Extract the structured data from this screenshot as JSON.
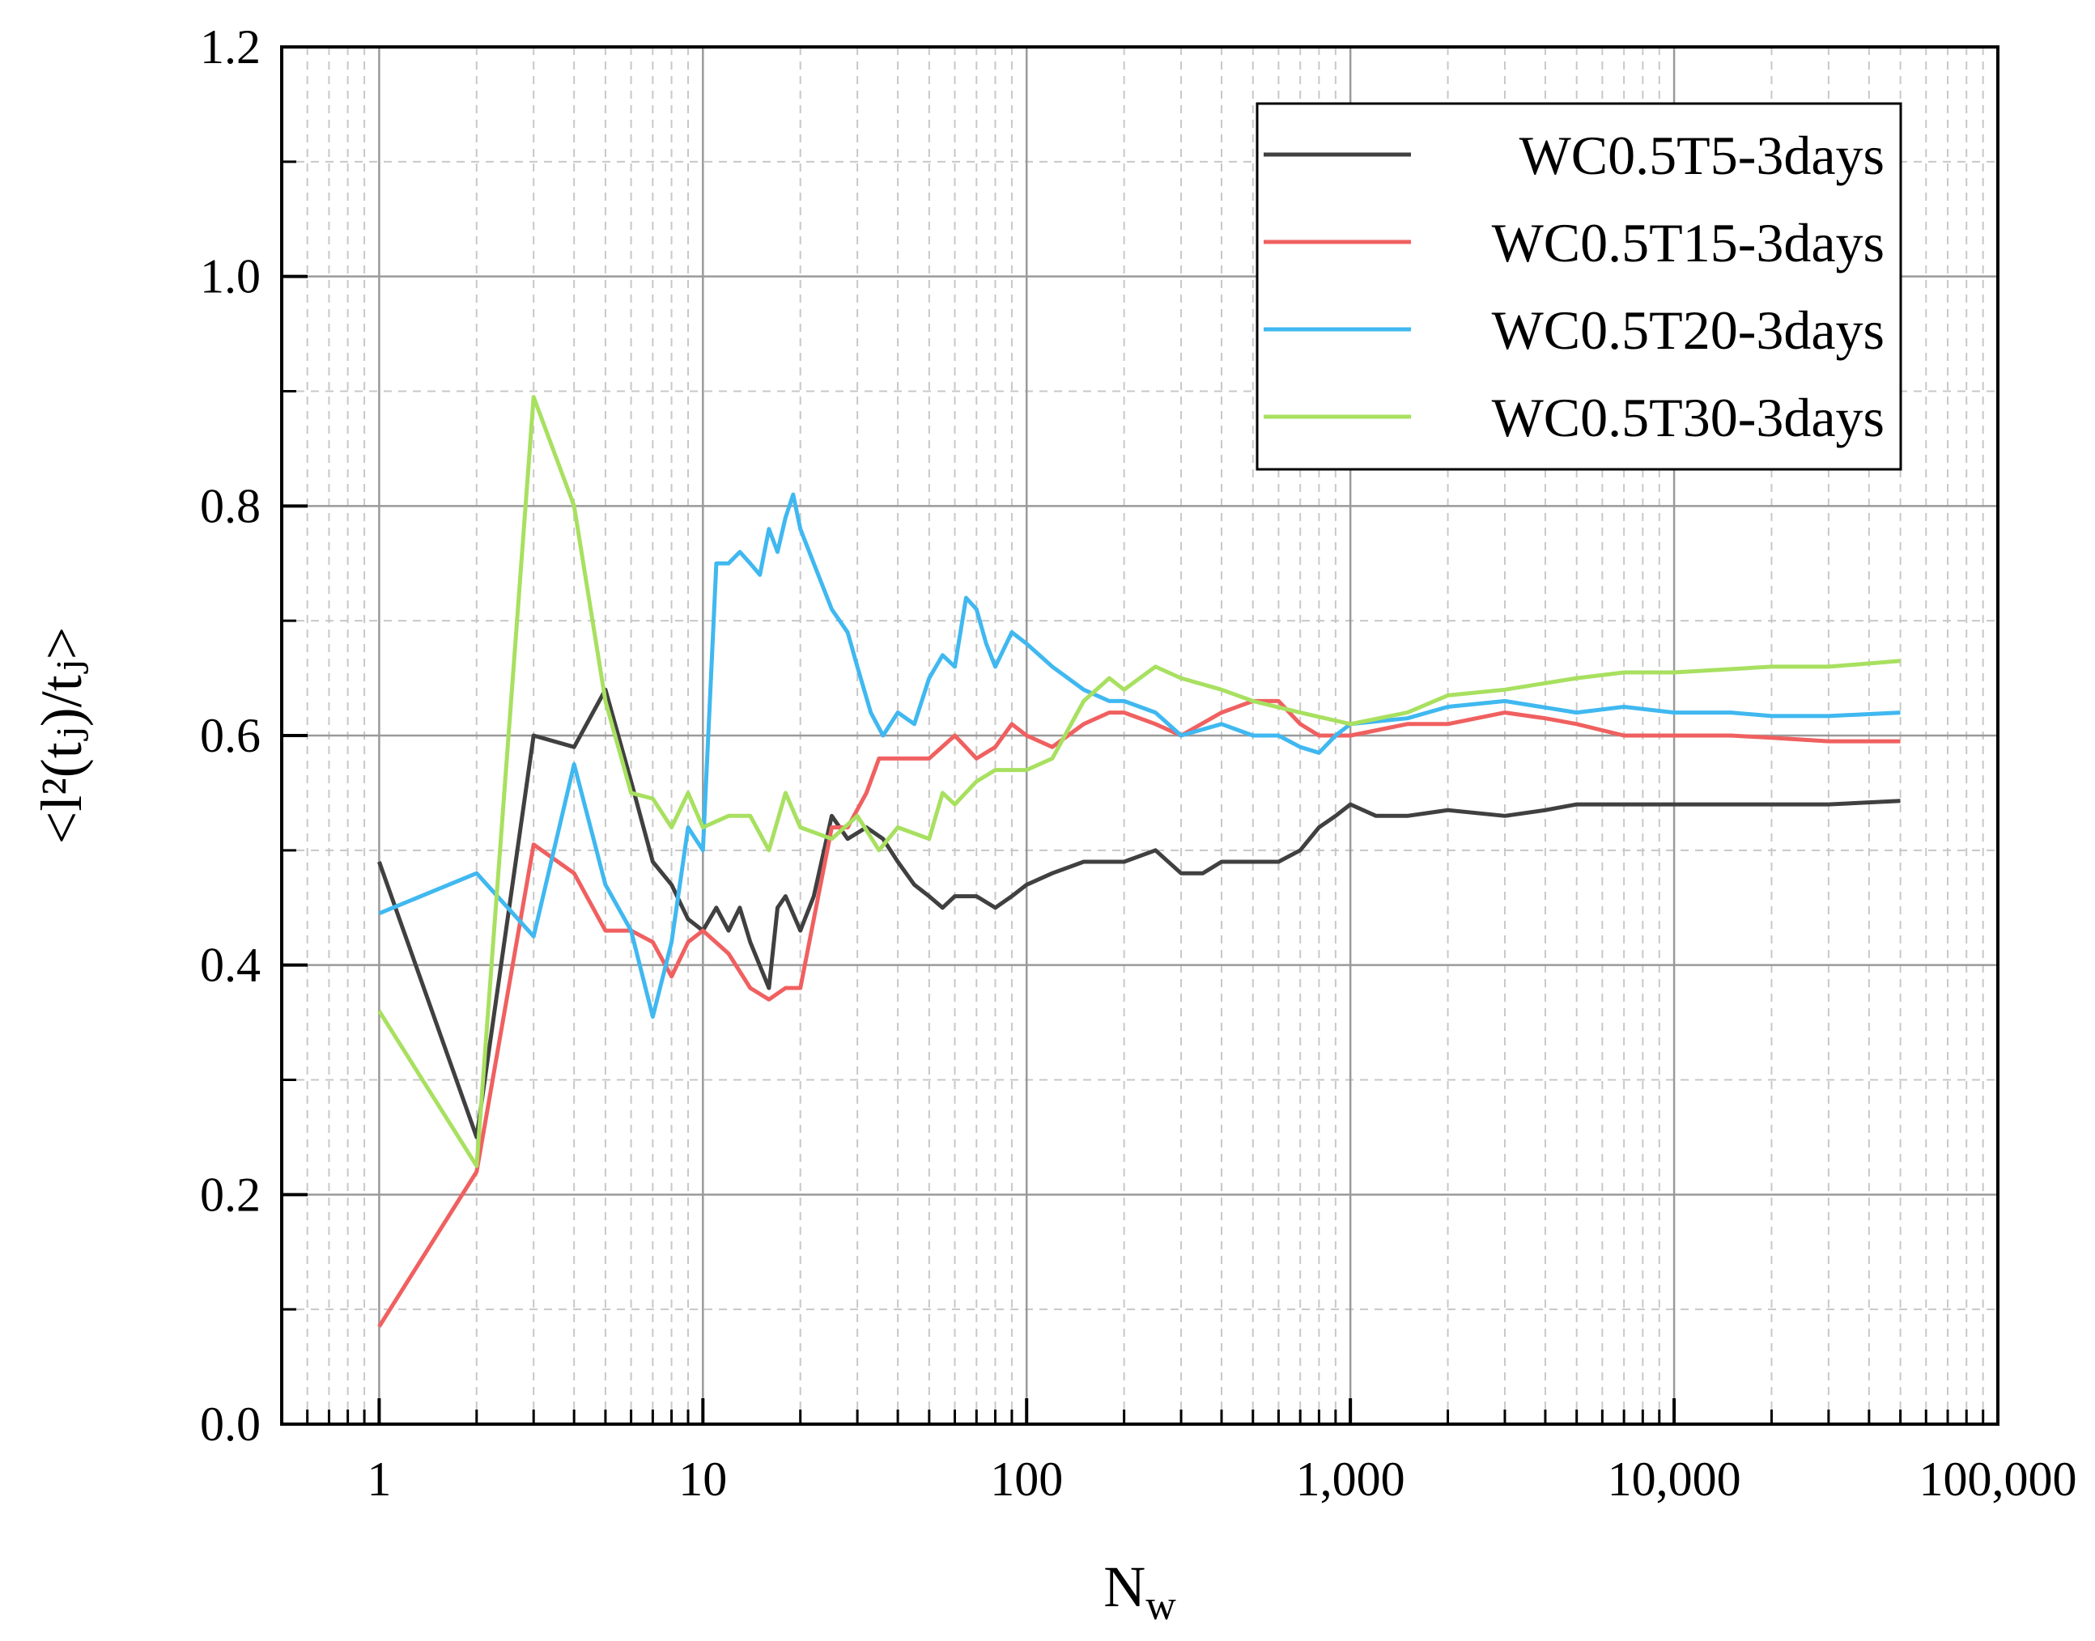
{
  "chart_data": {
    "type": "line",
    "xscale": "log",
    "xlabel": "N",
    "xlabel_sub": "w",
    "ylabel": "<l²(tⱼ)/tⱼ>",
    "xlim": [
      0.5,
      100000
    ],
    "ylim": [
      0.0,
      1.2
    ],
    "grid": true,
    "legend_position": "top-right",
    "x_ticks": [
      1,
      10,
      100,
      1000,
      10000,
      100000
    ],
    "x_tick_labels": [
      "1",
      "10",
      "100",
      "1,000",
      "10,000",
      "100,000"
    ],
    "y_ticks": [
      0.0,
      0.2,
      0.4,
      0.6,
      0.8,
      1.0,
      1.2
    ],
    "y_tick_labels": [
      "0.0",
      "0.2",
      "0.4",
      "0.6",
      "0.8",
      "1.0",
      "1.2"
    ],
    "series": [
      {
        "name": "WC0.5T5-3days",
        "color": "#404040",
        "points": [
          [
            1,
            0.49
          ],
          [
            2,
            0.25
          ],
          [
            3,
            0.6
          ],
          [
            4,
            0.59
          ],
          [
            5,
            0.64
          ],
          [
            6,
            0.56
          ],
          [
            7,
            0.49
          ],
          [
            8,
            0.47
          ],
          [
            9,
            0.44
          ],
          [
            10,
            0.43
          ],
          [
            11,
            0.45
          ],
          [
            12,
            0.43
          ],
          [
            13,
            0.45
          ],
          [
            14,
            0.42
          ],
          [
            16,
            0.38
          ],
          [
            17,
            0.45
          ],
          [
            18,
            0.46
          ],
          [
            20,
            0.43
          ],
          [
            22,
            0.46
          ],
          [
            25,
            0.53
          ],
          [
            28,
            0.51
          ],
          [
            32,
            0.52
          ],
          [
            36,
            0.51
          ],
          [
            40,
            0.49
          ],
          [
            45,
            0.47
          ],
          [
            50,
            0.46
          ],
          [
            55,
            0.45
          ],
          [
            60,
            0.46
          ],
          [
            70,
            0.46
          ],
          [
            80,
            0.45
          ],
          [
            90,
            0.46
          ],
          [
            100,
            0.47
          ],
          [
            120,
            0.48
          ],
          [
            150,
            0.49
          ],
          [
            180,
            0.49
          ],
          [
            200,
            0.49
          ],
          [
            250,
            0.5
          ],
          [
            300,
            0.48
          ],
          [
            350,
            0.48
          ],
          [
            400,
            0.49
          ],
          [
            500,
            0.49
          ],
          [
            600,
            0.49
          ],
          [
            700,
            0.5
          ],
          [
            800,
            0.52
          ],
          [
            900,
            0.53
          ],
          [
            1000,
            0.54
          ],
          [
            1200,
            0.53
          ],
          [
            1500,
            0.53
          ],
          [
            2000,
            0.535
          ],
          [
            3000,
            0.53
          ],
          [
            4000,
            0.535
          ],
          [
            5000,
            0.54
          ],
          [
            7000,
            0.54
          ],
          [
            10000,
            0.54
          ],
          [
            15000,
            0.54
          ],
          [
            20000,
            0.54
          ],
          [
            30000,
            0.54
          ],
          [
            50000,
            0.543
          ]
        ]
      },
      {
        "name": "WC0.5T15-3days",
        "color": "#f06060",
        "points": [
          [
            1,
            0.085
          ],
          [
            2,
            0.22
          ],
          [
            3,
            0.505
          ],
          [
            4,
            0.48
          ],
          [
            5,
            0.43
          ],
          [
            6,
            0.43
          ],
          [
            7,
            0.42
          ],
          [
            8,
            0.39
          ],
          [
            9,
            0.42
          ],
          [
            10,
            0.43
          ],
          [
            12,
            0.41
          ],
          [
            14,
            0.38
          ],
          [
            16,
            0.37
          ],
          [
            18,
            0.38
          ],
          [
            20,
            0.38
          ],
          [
            22,
            0.44
          ],
          [
            25,
            0.52
          ],
          [
            28,
            0.52
          ],
          [
            32,
            0.55
          ],
          [
            35,
            0.58
          ],
          [
            40,
            0.58
          ],
          [
            50,
            0.58
          ],
          [
            60,
            0.6
          ],
          [
            70,
            0.58
          ],
          [
            80,
            0.59
          ],
          [
            90,
            0.61
          ],
          [
            100,
            0.6
          ],
          [
            120,
            0.59
          ],
          [
            150,
            0.61
          ],
          [
            180,
            0.62
          ],
          [
            200,
            0.62
          ],
          [
            250,
            0.61
          ],
          [
            300,
            0.6
          ],
          [
            400,
            0.62
          ],
          [
            500,
            0.63
          ],
          [
            600,
            0.63
          ],
          [
            700,
            0.61
          ],
          [
            800,
            0.6
          ],
          [
            1000,
            0.6
          ],
          [
            1500,
            0.61
          ],
          [
            2000,
            0.61
          ],
          [
            3000,
            0.62
          ],
          [
            4000,
            0.615
          ],
          [
            5000,
            0.61
          ],
          [
            7000,
            0.6
          ],
          [
            10000,
            0.6
          ],
          [
            15000,
            0.6
          ],
          [
            20000,
            0.598
          ],
          [
            30000,
            0.595
          ],
          [
            50000,
            0.595
          ]
        ]
      },
      {
        "name": "WC0.5T20-3days",
        "color": "#40b8f0",
        "points": [
          [
            1,
            0.445
          ],
          [
            2,
            0.48
          ],
          [
            3,
            0.425
          ],
          [
            4,
            0.575
          ],
          [
            5,
            0.47
          ],
          [
            6,
            0.43
          ],
          [
            7,
            0.355
          ],
          [
            8,
            0.42
          ],
          [
            9,
            0.52
          ],
          [
            10,
            0.5
          ],
          [
            11,
            0.75
          ],
          [
            12,
            0.75
          ],
          [
            13,
            0.76
          ],
          [
            14,
            0.75
          ],
          [
            15,
            0.74
          ],
          [
            16,
            0.78
          ],
          [
            17,
            0.76
          ],
          [
            18,
            0.79
          ],
          [
            19,
            0.81
          ],
          [
            20,
            0.78
          ],
          [
            22,
            0.75
          ],
          [
            25,
            0.71
          ],
          [
            28,
            0.69
          ],
          [
            30,
            0.66
          ],
          [
            33,
            0.62
          ],
          [
            36,
            0.6
          ],
          [
            40,
            0.62
          ],
          [
            45,
            0.61
          ],
          [
            50,
            0.65
          ],
          [
            55,
            0.67
          ],
          [
            60,
            0.66
          ],
          [
            65,
            0.72
          ],
          [
            70,
            0.71
          ],
          [
            75,
            0.68
          ],
          [
            80,
            0.66
          ],
          [
            90,
            0.69
          ],
          [
            100,
            0.68
          ],
          [
            120,
            0.66
          ],
          [
            150,
            0.64
          ],
          [
            180,
            0.63
          ],
          [
            200,
            0.63
          ],
          [
            250,
            0.62
          ],
          [
            300,
            0.6
          ],
          [
            400,
            0.61
          ],
          [
            500,
            0.6
          ],
          [
            600,
            0.6
          ],
          [
            700,
            0.59
          ],
          [
            800,
            0.585
          ],
          [
            900,
            0.6
          ],
          [
            1000,
            0.61
          ],
          [
            1500,
            0.615
          ],
          [
            2000,
            0.625
          ],
          [
            3000,
            0.63
          ],
          [
            5000,
            0.62
          ],
          [
            7000,
            0.625
          ],
          [
            10000,
            0.62
          ],
          [
            15000,
            0.62
          ],
          [
            20000,
            0.617
          ],
          [
            30000,
            0.617
          ],
          [
            50000,
            0.62
          ]
        ]
      },
      {
        "name": "WC0.5T30-3days",
        "color": "#a8e060",
        "points": [
          [
            1,
            0.36
          ],
          [
            2,
            0.225
          ],
          [
            3,
            0.895
          ],
          [
            4,
            0.8
          ],
          [
            5,
            0.63
          ],
          [
            6,
            0.55
          ],
          [
            7,
            0.545
          ],
          [
            8,
            0.52
          ],
          [
            9,
            0.55
          ],
          [
            10,
            0.52
          ],
          [
            12,
            0.53
          ],
          [
            14,
            0.53
          ],
          [
            16,
            0.5
          ],
          [
            18,
            0.55
          ],
          [
            20,
            0.52
          ],
          [
            25,
            0.51
          ],
          [
            30,
            0.53
          ],
          [
            35,
            0.5
          ],
          [
            40,
            0.52
          ],
          [
            50,
            0.51
          ],
          [
            55,
            0.55
          ],
          [
            60,
            0.54
          ],
          [
            70,
            0.56
          ],
          [
            80,
            0.57
          ],
          [
            100,
            0.57
          ],
          [
            120,
            0.58
          ],
          [
            150,
            0.63
          ],
          [
            180,
            0.65
          ],
          [
            200,
            0.64
          ],
          [
            250,
            0.66
          ],
          [
            300,
            0.65
          ],
          [
            400,
            0.64
          ],
          [
            500,
            0.63
          ],
          [
            700,
            0.62
          ],
          [
            1000,
            0.61
          ],
          [
            1500,
            0.62
          ],
          [
            2000,
            0.635
          ],
          [
            3000,
            0.64
          ],
          [
            5000,
            0.65
          ],
          [
            7000,
            0.655
          ],
          [
            10000,
            0.655
          ],
          [
            20000,
            0.66
          ],
          [
            30000,
            0.66
          ],
          [
            50000,
            0.665
          ]
        ]
      }
    ]
  }
}
